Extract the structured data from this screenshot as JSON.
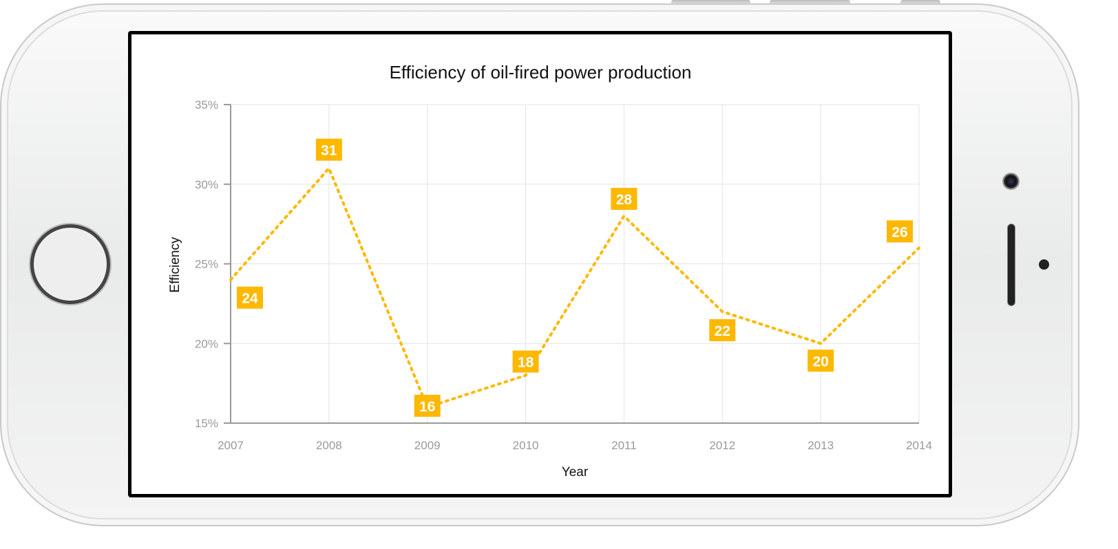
{
  "chart_data": {
    "type": "line",
    "title": "Efficiency of oil-fired power production",
    "xlabel": "Year",
    "ylabel": "Efficiency",
    "categories": [
      "2007",
      "2008",
      "2009",
      "2010",
      "2011",
      "2012",
      "2013",
      "2014"
    ],
    "values": [
      24,
      31,
      16,
      18,
      28,
      22,
      20,
      26
    ],
    "yticks": [
      "15%",
      "20%",
      "25%",
      "30%",
      "35%"
    ],
    "ylim": [
      15,
      35
    ],
    "grid": true,
    "series_color": "#FFB800",
    "line_style": "dotted"
  }
}
